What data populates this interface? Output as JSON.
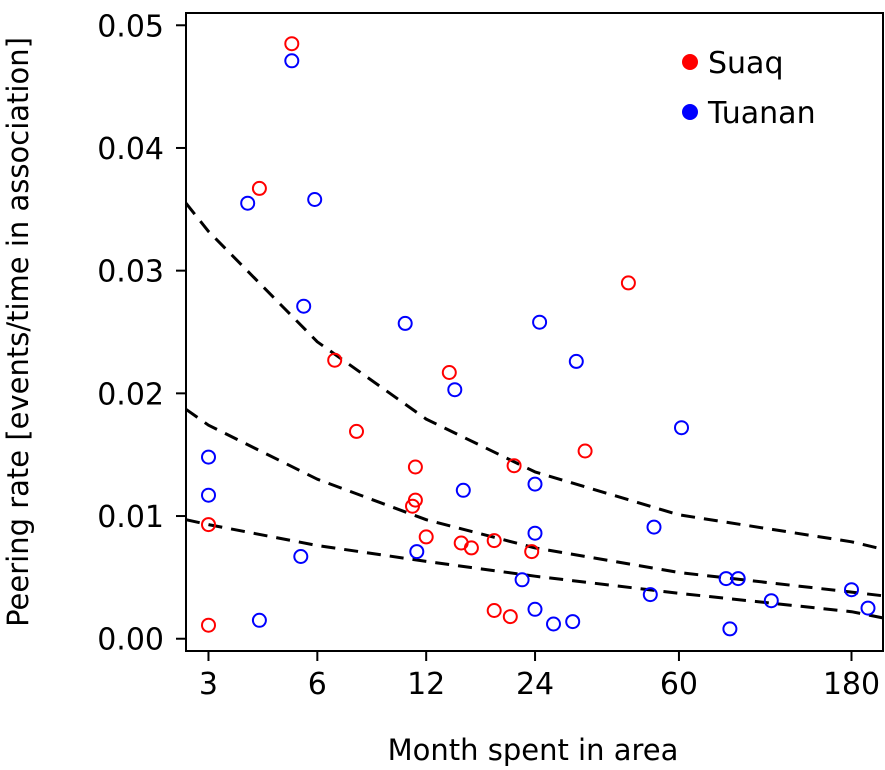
{
  "chart_data": {
    "type": "scatter",
    "title": "",
    "xlabel": "Month spent in area",
    "ylabel": "Peering rate [events/time in association]",
    "x_scale": "log",
    "xlim": [
      2.6,
      220
    ],
    "ylim": [
      -0.001,
      0.051
    ],
    "x_ticks": [
      3,
      6,
      12,
      24,
      60,
      180
    ],
    "x_tick_labels": [
      "3",
      "6",
      "12",
      "24",
      "60",
      "180"
    ],
    "y_ticks": [
      0.0,
      0.01,
      0.02,
      0.03,
      0.04,
      0.05
    ],
    "y_tick_labels": [
      "0.00",
      "0.01",
      "0.02",
      "0.03",
      "0.04",
      "0.05"
    ],
    "legend": {
      "position": "top-right",
      "entries": [
        {
          "name": "Suaq",
          "color": "#ff0000"
        },
        {
          "name": "Tuanan",
          "color": "#0000ff"
        }
      ]
    },
    "series": [
      {
        "name": "Suaq",
        "color": "#ff0000",
        "marker": "open-circle",
        "points": [
          [
            3.0,
            0.0093
          ],
          [
            3.0,
            0.0011
          ],
          [
            4.15,
            0.0367
          ],
          [
            5.1,
            0.0485
          ],
          [
            6.7,
            0.0227
          ],
          [
            7.7,
            0.0169
          ],
          [
            11.2,
            0.014
          ],
          [
            11.2,
            0.0113
          ],
          [
            11.0,
            0.0108
          ],
          [
            12.0,
            0.0083
          ],
          [
            13.9,
            0.0217
          ],
          [
            15.0,
            0.0078
          ],
          [
            16.0,
            0.0074
          ],
          [
            18.5,
            0.008
          ],
          [
            18.5,
            0.0023
          ],
          [
            20.5,
            0.0018
          ],
          [
            21.0,
            0.0141
          ],
          [
            23.5,
            0.0071
          ],
          [
            33.0,
            0.0153
          ],
          [
            43.5,
            0.029
          ]
        ]
      },
      {
        "name": "Tuanan",
        "color": "#0000ff",
        "marker": "open-circle",
        "points": [
          [
            3.0,
            0.0148
          ],
          [
            3.0,
            0.0117
          ],
          [
            3.85,
            0.0355
          ],
          [
            4.15,
            0.0015
          ],
          [
            5.1,
            0.0471
          ],
          [
            5.5,
            0.0271
          ],
          [
            5.4,
            0.0067
          ],
          [
            5.9,
            0.0358
          ],
          [
            10.5,
            0.0257
          ],
          [
            11.3,
            0.0071
          ],
          [
            14.4,
            0.0203
          ],
          [
            15.2,
            0.0121
          ],
          [
            22.1,
            0.0048
          ],
          [
            24.0,
            0.0126
          ],
          [
            24.0,
            0.0086
          ],
          [
            24.0,
            0.0024
          ],
          [
            24.7,
            0.0258
          ],
          [
            27.0,
            0.0012
          ],
          [
            30.5,
            0.0014
          ],
          [
            31.2,
            0.0226
          ],
          [
            50.0,
            0.0036
          ],
          [
            51.2,
            0.0091
          ],
          [
            61.0,
            0.0172
          ],
          [
            81.0,
            0.0049
          ],
          [
            83.0,
            0.0008
          ],
          [
            87.5,
            0.0049
          ],
          [
            108.0,
            0.0031
          ],
          [
            180.0,
            0.004
          ],
          [
            200.0,
            0.0025
          ]
        ]
      }
    ],
    "fit_lines": [
      {
        "style": "dashed",
        "color": "#000000",
        "x": [
          2.6,
          3,
          6,
          12,
          24,
          60,
          180,
          220
        ],
        "y": [
          0.0355,
          0.0332,
          0.0242,
          0.0179,
          0.0136,
          0.0101,
          0.0079,
          0.0073
        ]
      },
      {
        "style": "dashed",
        "color": "#000000",
        "x": [
          2.6,
          3,
          6,
          12,
          24,
          60,
          180,
          220
        ],
        "y": [
          0.0187,
          0.0174,
          0.013,
          0.0097,
          0.0074,
          0.0054,
          0.0038,
          0.0035
        ]
      },
      {
        "style": "dashed",
        "color": "#000000",
        "x": [
          2.6,
          3,
          6,
          12,
          24,
          60,
          180,
          220
        ],
        "y": [
          0.0097,
          0.0093,
          0.0076,
          0.0063,
          0.0051,
          0.0037,
          0.0022,
          0.0017
        ]
      }
    ]
  }
}
